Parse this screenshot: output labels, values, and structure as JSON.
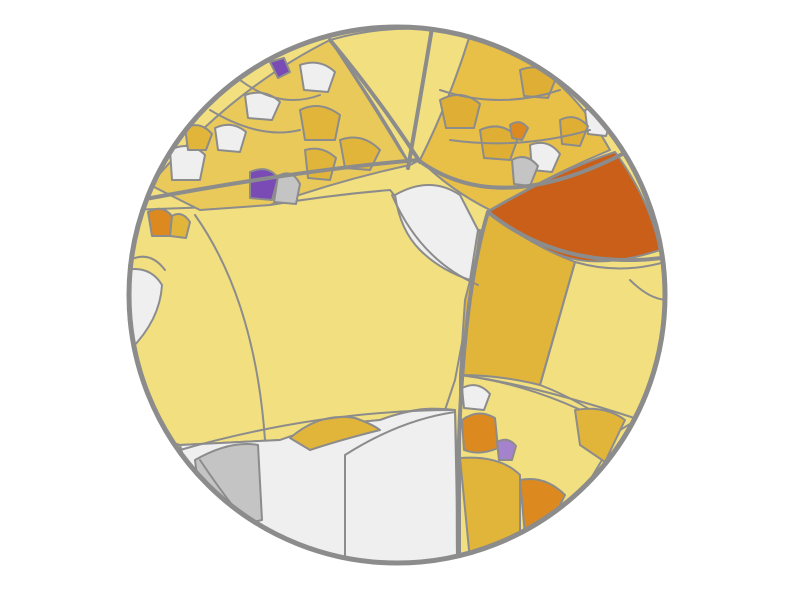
{
  "palette": {
    "background": "#ffffff",
    "outline": "#8c8c8c",
    "pale_yellow": "#f2df7f",
    "gold": "#e1b53a",
    "orange": "#dc8a20",
    "rust": "#c95f18",
    "light_gray": "#efefef",
    "mid_gray": "#c4c4c4",
    "purple": "#7a4ab5",
    "lavender": "#a482cc"
  }
}
